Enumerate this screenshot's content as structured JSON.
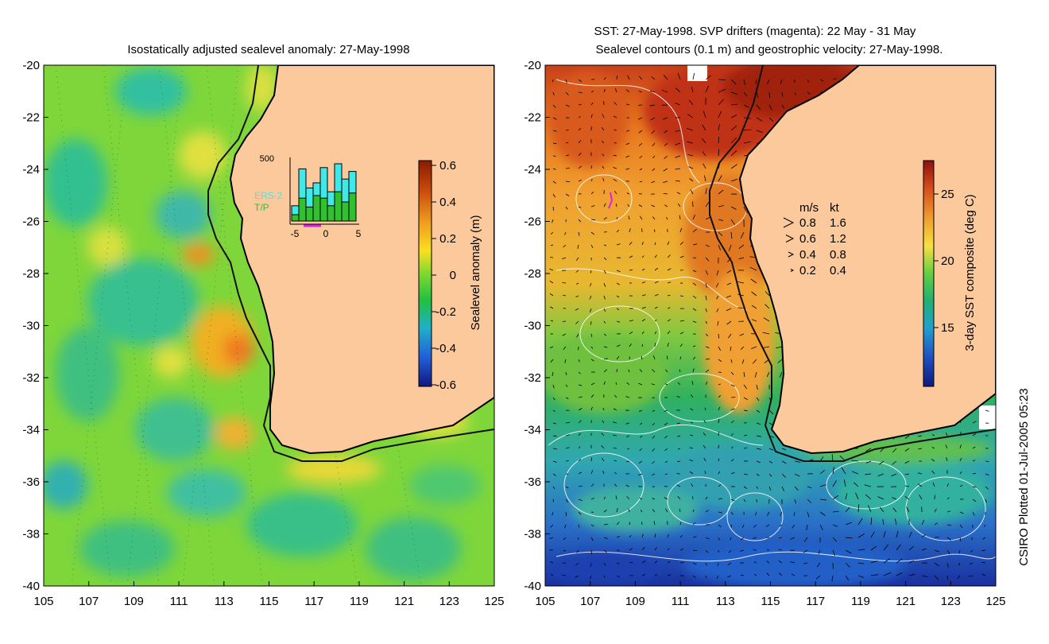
{
  "left_panel": {
    "title": "Isostatically adjusted sealevel anomaly: 27-May-1998",
    "colorbar": {
      "label": "Sealevel anomaly (m)",
      "ticks": [
        "0.6",
        "0.4",
        "0.2",
        "0",
        "-0.2",
        "-0.4",
        "-0.6"
      ],
      "colors": [
        "#8b1a00",
        "#c84a0a",
        "#f0a020",
        "#f8e020",
        "#80d830",
        "#20c040",
        "#20b0c8",
        "#2060d8",
        "#101880"
      ]
    },
    "inset": {
      "y_max_label": "500",
      "x_ticks": [
        "-5",
        "0",
        "5"
      ],
      "legend": [
        {
          "name": "ERS-2",
          "color": "#40e8e8"
        },
        {
          "name": "T/P",
          "color": "#30c030"
        }
      ],
      "ers2_counts": [
        120,
        410,
        260,
        300,
        420,
        230,
        450,
        330,
        390
      ],
      "tp_counts": [
        50,
        180,
        110,
        200,
        180,
        120,
        230,
        150,
        220
      ],
      "window_color": "#e020e0"
    }
  },
  "right_panel": {
    "title_line1": "SST: 27-May-1998. SVP drifters (magenta): 22 May - 31 May",
    "title_line2": "Sealevel contours (0.1 m) and geostrophic velocity: 27-May-1998.",
    "colorbar": {
      "label": "3-day SST composite (deg C)",
      "ticks": [
        "25",
        "20",
        "15"
      ],
      "colors": [
        "#8b1010",
        "#d84a18",
        "#f0a030",
        "#f8e040",
        "#60d040",
        "#20b070",
        "#20a0d0",
        "#2050c0",
        "#101880"
      ]
    },
    "velocity_legend": {
      "header_ms": "m/s",
      "header_kt": "kt",
      "rows": [
        {
          "ms": "0.8",
          "kt": "1.6"
        },
        {
          "ms": "0.6",
          "kt": "1.2"
        },
        {
          "ms": "0.4",
          "kt": "0.8"
        },
        {
          "ms": "0.2",
          "kt": "0.4"
        }
      ]
    }
  },
  "axes": {
    "x_ticks": [
      "105",
      "107",
      "109",
      "111",
      "113",
      "115",
      "117",
      "119",
      "121",
      "123",
      "125"
    ],
    "y_ticks": [
      "-20",
      "-22",
      "-24",
      "-26",
      "-28",
      "-30",
      "-32",
      "-34",
      "-36",
      "-38",
      "-40"
    ]
  },
  "credit": "CSIRO Plotted 01-Jul-2005 05:23",
  "colors": {
    "land": "#fbc99b",
    "ocean_left": "#7ed63a",
    "coastline": "#000000",
    "shelf_edge": "#101010",
    "contour": "#ffffff",
    "vector": "#000000"
  }
}
